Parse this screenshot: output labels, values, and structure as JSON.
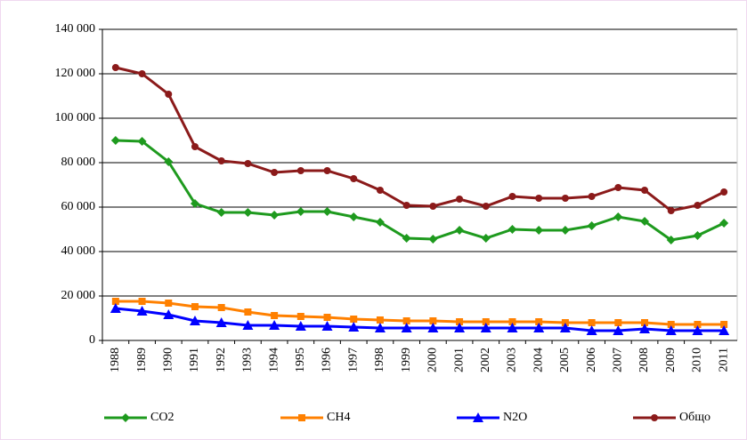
{
  "chart_data": {
    "type": "line",
    "categories": [
      "1988",
      "1989",
      "1990",
      "1991",
      "1992",
      "1993",
      "1994",
      "1995",
      "1996",
      "1997",
      "1998",
      "1999",
      "2000",
      "2001",
      "2002",
      "2003",
      "2004",
      "2005",
      "2006",
      "2007",
      "2008",
      "2009",
      "2010",
      "2011"
    ],
    "series": [
      {
        "name": "CO2",
        "color": "#1e9a1e",
        "marker": "diamond",
        "values": [
          90000,
          89600,
          80400,
          61600,
          57600,
          57600,
          56400,
          58000,
          58000,
          55600,
          53200,
          46000,
          45600,
          49600,
          46000,
          50000,
          49600,
          49600,
          51600,
          55600,
          53600,
          45200,
          47200,
          52800
        ]
      },
      {
        "name": "CH4",
        "color": "#ff8000",
        "marker": "square",
        "values": [
          17600,
          17600,
          16800,
          15200,
          14800,
          12800,
          11200,
          10800,
          10400,
          9600,
          9200,
          8800,
          8800,
          8400,
          8400,
          8400,
          8400,
          8000,
          8000,
          8000,
          8000,
          7200,
          7200,
          7200
        ]
      },
      {
        "name": "N2O",
        "color": "#0000ff",
        "marker": "triangle",
        "values": [
          14400,
          13200,
          11600,
          8800,
          8000,
          6800,
          6800,
          6400,
          6400,
          6000,
          5600,
          5600,
          5600,
          5600,
          5600,
          5600,
          5600,
          5600,
          4400,
          4400,
          5200,
          4400,
          4400,
          4400
        ]
      },
      {
        "name": "Общо",
        "color": "#8b1a1a",
        "marker": "circle",
        "values": [
          122800,
          120000,
          110800,
          87200,
          80800,
          79600,
          75600,
          76400,
          76400,
          72800,
          67600,
          60800,
          60400,
          63600,
          60400,
          64800,
          64000,
          64000,
          64800,
          68800,
          67600,
          58400,
          60800,
          66800
        ]
      }
    ],
    "ylim": [
      0,
      140000
    ],
    "yticks": [
      0,
      {
        "value": 20000,
        "label": "20 000"
      },
      {
        "value": 40000,
        "label": "40 000"
      },
      {
        "value": 60000,
        "label": "60 000"
      },
      {
        "value": 80000,
        "label": "80 000"
      },
      {
        "value": 100000,
        "label": "100 000"
      },
      {
        "value": 120000,
        "label": "120 000"
      },
      {
        "value": 140000,
        "label": "140 000"
      }
    ],
    "grid": true,
    "legend": "bottom"
  }
}
